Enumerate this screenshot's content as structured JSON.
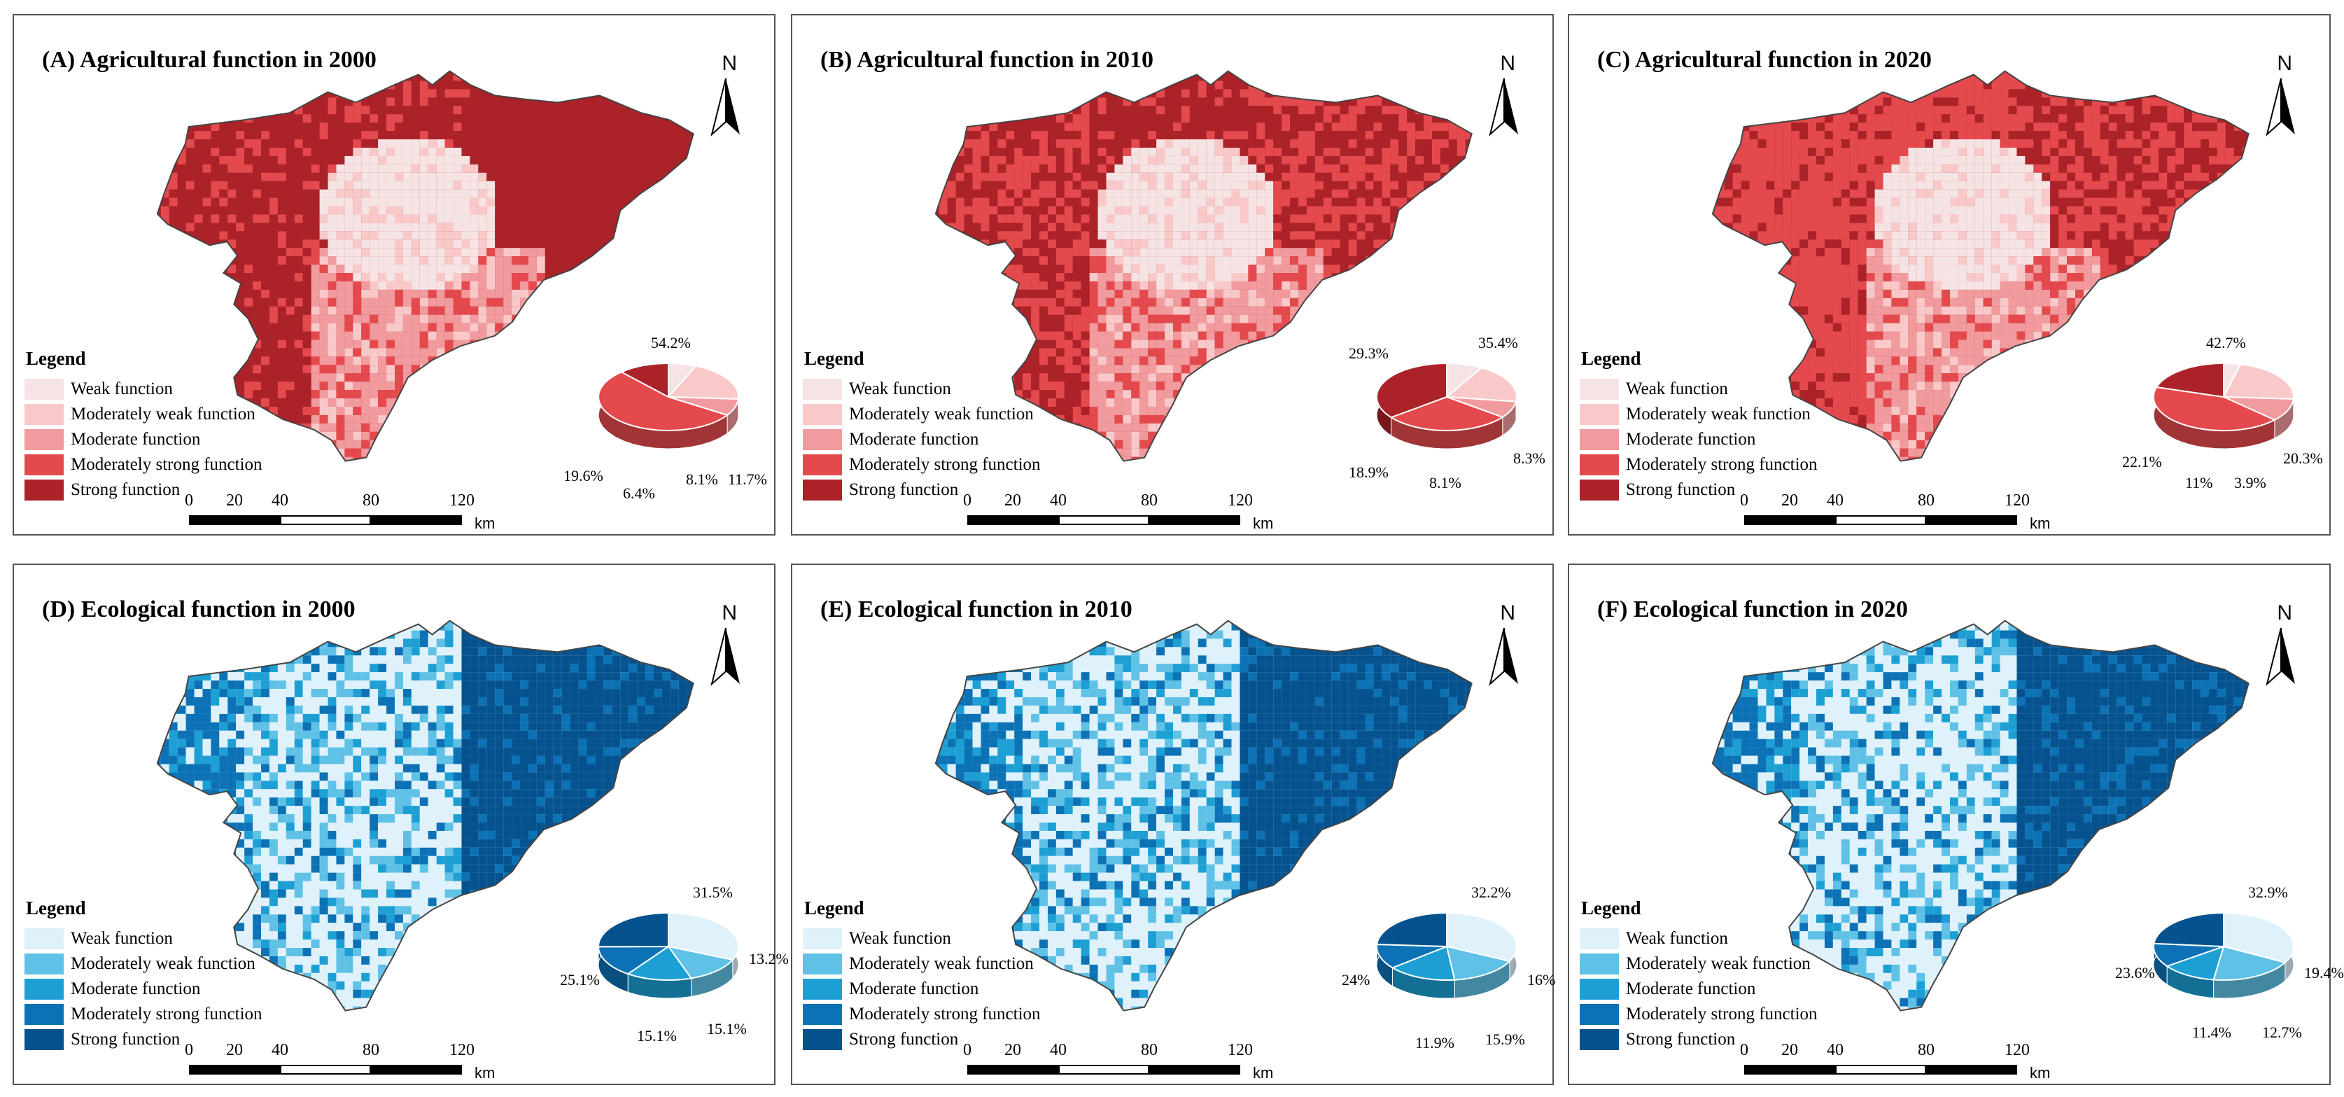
{
  "figure": {
    "scale": {
      "ticks": [
        "0",
        "20",
        "40",
        "80",
        "120"
      ],
      "unit": "km"
    },
    "north": "N",
    "legend_title": "Legend",
    "legend_items": [
      "Weak function",
      "Moderately  weak function",
      "Moderate function",
      "Moderately  strong function",
      "Strong function"
    ],
    "legend_items_eco": [
      "Weak function",
      "Moderately  weak function",
      "Moderate function",
      "Moderately  strong function",
      "Strong function"
    ]
  },
  "colors": {
    "agri": [
      "#f6e4e5",
      "#f9c9c9",
      "#f19b9e",
      "#e44a4d",
      "#ab2228"
    ],
    "eco": [
      "#dff2fb",
      "#5fc1e6",
      "#1d9fd4",
      "#0c72b5",
      "#05528e"
    ]
  },
  "panels": [
    {
      "id": "A",
      "title": "(A)  Agricultural function in 2000",
      "theme": "agri",
      "pie": {
        "weak": "6.4%",
        "mweak": "19.6%",
        "moderate": "8.1%",
        "mstrong": "54.2%",
        "strong": "11.7%"
      }
    },
    {
      "id": "B",
      "title": "(B)  Agricultural function in 2010",
      "theme": "agri",
      "pie": {
        "weak": "8.3%",
        "mweak": "18.9%",
        "moderate": "8.1%",
        "mstrong": "29.3%",
        "strong": "35.4%"
      }
    },
    {
      "id": "C",
      "title": "(C)  Agricultural function in 2020",
      "theme": "agri",
      "pie": {
        "weak": "3.9%",
        "mweak": "22.1%",
        "moderate": "11%",
        "mstrong": "42.7%",
        "strong": "20.3%"
      }
    },
    {
      "id": "D",
      "title": "(D)   Ecological function in 2000",
      "theme": "eco",
      "pie": {
        "weak": "31.5%",
        "mweak": "13.2%",
        "moderate": "15.1%",
        "mstrong": "15.1%",
        "strong": "25.1%"
      }
    },
    {
      "id": "E",
      "title": "(E)   Ecological function in 2010",
      "theme": "eco",
      "pie": {
        "weak": "32.2%",
        "mweak": "16%",
        "moderate": "15.9%",
        "mstrong": "11.9%",
        "strong": "24%"
      }
    },
    {
      "id": "F",
      "title": "(F)   Ecological function in 2020",
      "theme": "eco",
      "pie": {
        "weak": "32.9%",
        "mweak": "19.4%",
        "moderate": "12.7%",
        "mstrong": "11.4%",
        "strong": "23.6%"
      }
    }
  ]
}
